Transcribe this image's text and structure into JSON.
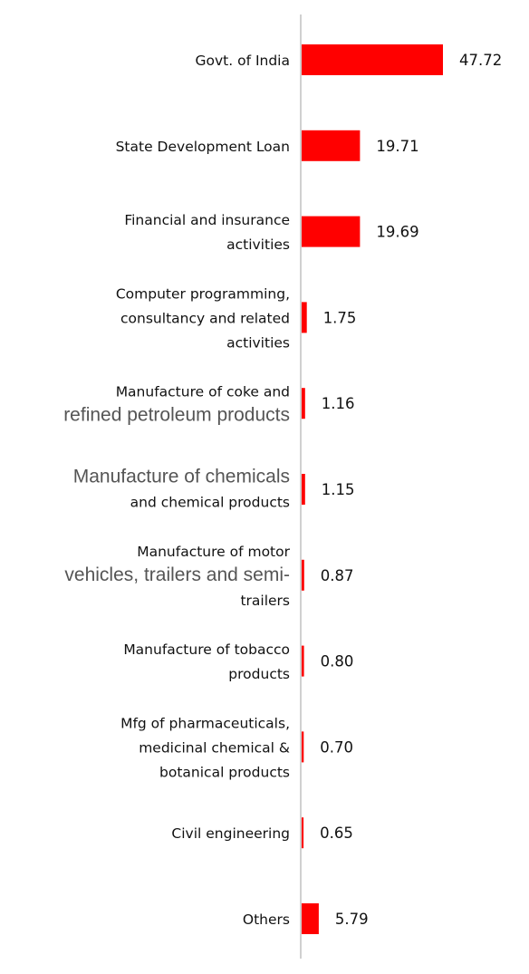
{
  "chart_data": {
    "type": "bar",
    "orientation": "horizontal",
    "title": "",
    "xlabel": "",
    "ylabel": "",
    "grid": false,
    "legend": "none",
    "bar_color": "#ff0000",
    "axis_color": "#d0d0d0",
    "categories": [
      "Govt. of India",
      "State Development Loan",
      "Financial and insurance activities",
      "Computer programming, consultancy and related activities",
      "Manufacture of coke and refined petroleum products",
      "Manufacture of chemicals and chemical products",
      "Manufacture of motor vehicles, trailers and semi-trailers",
      "Manufacture of tobacco products",
      "Mfg of pharmaceuticals, medicinal chemical & botanical products",
      "Civil engineering",
      "Others"
    ],
    "category_lines": [
      [
        {
          "text": "Govt. of India"
        }
      ],
      [
        {
          "text": "State Development Loan"
        }
      ],
      [
        {
          "text": "Financial and insurance"
        },
        {
          "text": "activities"
        }
      ],
      [
        {
          "text": "Computer programming,"
        },
        {
          "text": "consultancy and related"
        },
        {
          "text": "activities"
        }
      ],
      [
        {
          "text": "Manufacture of coke and"
        },
        {
          "text": "refined petroleum products",
          "big": true
        }
      ],
      [
        {
          "text": "Manufacture of chemicals",
          "big": true
        },
        {
          "text": "and chemical products"
        }
      ],
      [
        {
          "text": "Manufacture of motor"
        },
        {
          "text": "vehicles, trailers and semi-",
          "big": true
        },
        {
          "text": "trailers"
        }
      ],
      [
        {
          "text": "Manufacture of tobacco"
        },
        {
          "text": "products"
        }
      ],
      [
        {
          "text": "Mfg of pharmaceuticals,"
        },
        {
          "text": "medicinal chemical &"
        },
        {
          "text": "botanical products"
        }
      ],
      [
        {
          "text": "Civil engineering"
        }
      ],
      [
        {
          "text": "Others"
        }
      ]
    ],
    "values": [
      47.72,
      19.71,
      19.69,
      1.75,
      1.16,
      1.15,
      0.87,
      0.8,
      0.7,
      0.65,
      5.79
    ],
    "value_labels": [
      "47.72",
      "19.71",
      "19.69",
      "1.75",
      "1.16",
      "1.15",
      "0.87",
      "0.80",
      "0.70",
      "0.65",
      "5.79"
    ],
    "xlim": [
      0,
      47.72
    ]
  }
}
